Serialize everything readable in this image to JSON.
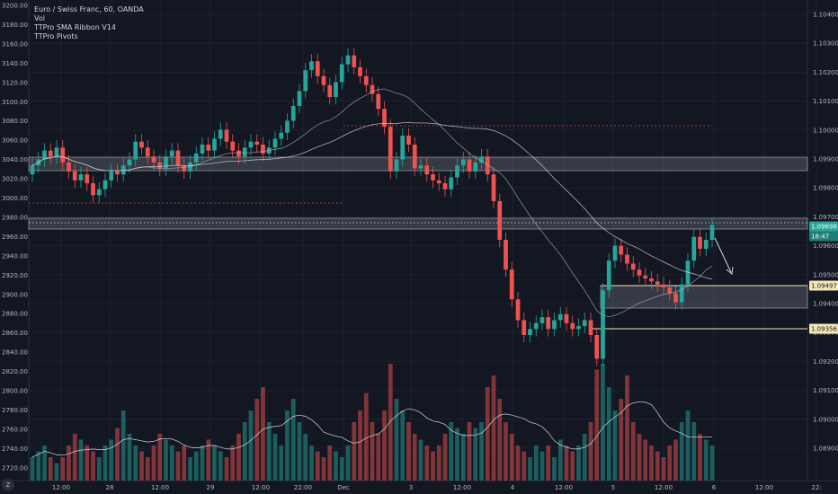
{
  "legend": {
    "symbol": "Euro / Swiss Franc, 60, OANDA",
    "indicators": [
      "Vol",
      "TTPro SMA Ribbon V14",
      "TTPro Pivots"
    ]
  },
  "left_axis_ticks": [
    "3200.00",
    "3180.00",
    "3160.00",
    "3140.00",
    "3120.00",
    "3100.00",
    "3080.00",
    "3060.00",
    "3040.00",
    "3020.00",
    "3000.00",
    "2980.00",
    "2960.00",
    "2940.00",
    "2920.00",
    "2900.00",
    "2880.00",
    "2860.00",
    "2840.00",
    "2820.00",
    "2800.00",
    "2780.00",
    "2760.00",
    "2740.00",
    "2720.00"
  ],
  "right_axis_ticks": [
    "1.10400",
    "1.10300",
    "1.10200",
    "1.10100",
    "1.10000",
    "1.09900",
    "1.09800",
    "1.09700",
    "1.09600",
    "1.09500",
    "1.09400",
    "1.09300",
    "1.09200",
    "1.09100",
    "1.09000",
    "1.08900"
  ],
  "time_axis_ticks": [
    "12:00",
    "28",
    "12:00",
    "29",
    "12:00",
    "22:00",
    "Dec",
    "3",
    "12:00",
    "4",
    "12:00",
    "5",
    "12:00",
    "6",
    "12:00",
    "22:"
  ],
  "price_labels": {
    "current": "1.09698",
    "countdown": "18:47",
    "level1": "1.09497",
    "level2": "1.09356"
  },
  "ui": {
    "z_button": "Z"
  },
  "colors": {
    "bull": "#26a69a",
    "bear": "#ef5350",
    "bg": "#131722",
    "grid": "#1e222d",
    "zone": "#787b86"
  },
  "chart_data": {
    "type": "candlestick",
    "ylim_right": [
      1.0885,
      1.1045
    ],
    "candles_close": [
      1.099,
      1.0992,
      1.0995,
      1.0993,
      1.0996,
      1.0991,
      1.0988,
      1.0985,
      1.0987,
      1.0984,
      1.098,
      1.0982,
      1.0985,
      1.0988,
      1.0987,
      1.099,
      1.0992,
      1.0998,
      1.0996,
      1.0993,
      1.0991,
      1.0989,
      1.0993,
      1.0995,
      1.099,
      1.0988,
      1.0991,
      1.0994,
      1.0997,
      1.0995,
      1.0999,
      1.1002,
      1.0998,
      1.0995,
      1.0993,
      1.0996,
      1.0998,
      1.0997,
      1.0994,
      1.0996,
      1.0999,
      1.1001,
      1.1005,
      1.101,
      1.1015,
      1.1022,
      1.1025,
      1.102,
      1.1017,
      1.1013,
      1.1018,
      1.1024,
      1.1027,
      1.1023,
      1.102,
      1.1017,
      1.1014,
      1.1009,
      1.1003,
      1.0988,
      1.0992,
      1.1,
      1.0997,
      1.0989,
      1.099,
      1.0987,
      1.0985,
      1.0984,
      1.0982,
      1.0986,
      1.099,
      1.0992,
      1.0988,
      1.0991,
      1.0993,
      1.0987,
      1.0978,
      1.0965,
      1.0955,
      1.0945,
      1.0938,
      1.0933,
      1.0935,
      1.0937,
      1.0939,
      1.0935,
      1.0938,
      1.094,
      1.0937,
      1.0935,
      1.0936,
      1.0938,
      1.0933,
      1.0925,
      1.0948,
      1.0958,
      1.0963,
      1.096,
      1.0957,
      1.0955,
      1.0953,
      1.0952,
      1.0951,
      1.095,
      1.0949,
      1.0947,
      1.0944,
      1.095,
      1.0958,
      1.0966,
      1.0962,
      1.0965,
      1.097
    ],
    "volume_relative": [
      0.2,
      0.25,
      0.3,
      0.2,
      0.15,
      0.2,
      0.3,
      0.4,
      0.35,
      0.3,
      0.25,
      0.2,
      0.3,
      0.35,
      0.45,
      0.6,
      0.4,
      0.3,
      0.25,
      0.2,
      0.3,
      0.4,
      0.35,
      0.3,
      0.25,
      0.3,
      0.2,
      0.25,
      0.3,
      0.35,
      0.3,
      0.25,
      0.2,
      0.3,
      0.4,
      0.5,
      0.6,
      0.7,
      0.8,
      0.5,
      0.4,
      0.3,
      0.6,
      0.7,
      0.5,
      0.4,
      0.3,
      0.25,
      0.2,
      0.3,
      0.25,
      0.2,
      0.3,
      0.5,
      0.6,
      0.75,
      0.5,
      0.4,
      0.6,
      1.0,
      0.7,
      0.6,
      0.5,
      0.4,
      0.35,
      0.3,
      0.25,
      0.3,
      0.4,
      0.5,
      0.45,
      0.4,
      0.5,
      0.45,
      0.5,
      0.8,
      0.9,
      0.7,
      0.5,
      0.4,
      0.3,
      0.25,
      0.2,
      0.3,
      0.25,
      0.3,
      0.2,
      0.35,
      0.3,
      0.25,
      0.3,
      0.4,
      0.5,
      0.95,
      1.0,
      0.8,
      0.6,
      0.7,
      0.9,
      0.5,
      0.4,
      0.35,
      0.3,
      0.25,
      0.2,
      0.3,
      0.35,
      0.5,
      0.6,
      0.5,
      0.4,
      0.35,
      0.3
    ]
  }
}
